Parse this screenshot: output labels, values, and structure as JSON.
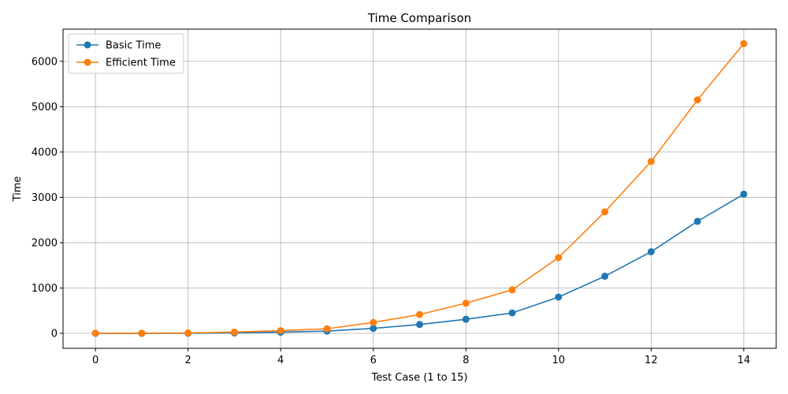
{
  "chart_data": {
    "type": "line",
    "title": "Time Comparison",
    "xlabel": "Test Case (1 to 15)",
    "ylabel": "Time",
    "x": [
      0,
      1,
      2,
      3,
      4,
      5,
      6,
      7,
      8,
      9,
      10,
      11,
      12,
      13,
      14
    ],
    "xlim": [
      -0.7,
      14.7
    ],
    "ylim": [
      -330,
      6710
    ],
    "xticks": [
      0,
      2,
      4,
      6,
      8,
      10,
      12,
      14
    ],
    "yticks": [
      0,
      1000,
      2000,
      3000,
      4000,
      5000,
      6000
    ],
    "grid": true,
    "legend_position": "top-left",
    "series": [
      {
        "name": "Basic Time",
        "color": "#1f77b4",
        "marker": "circle",
        "values": [
          0,
          0,
          2,
          10,
          25,
          50,
          110,
          195,
          310,
          450,
          800,
          1260,
          1800,
          2470,
          3070
        ]
      },
      {
        "name": "Efficient Time",
        "color": "#ff7f0e",
        "marker": "circle",
        "values": [
          2,
          3,
          8,
          28,
          60,
          100,
          240,
          415,
          665,
          960,
          1670,
          2680,
          3790,
          5150,
          6390
        ]
      }
    ]
  }
}
